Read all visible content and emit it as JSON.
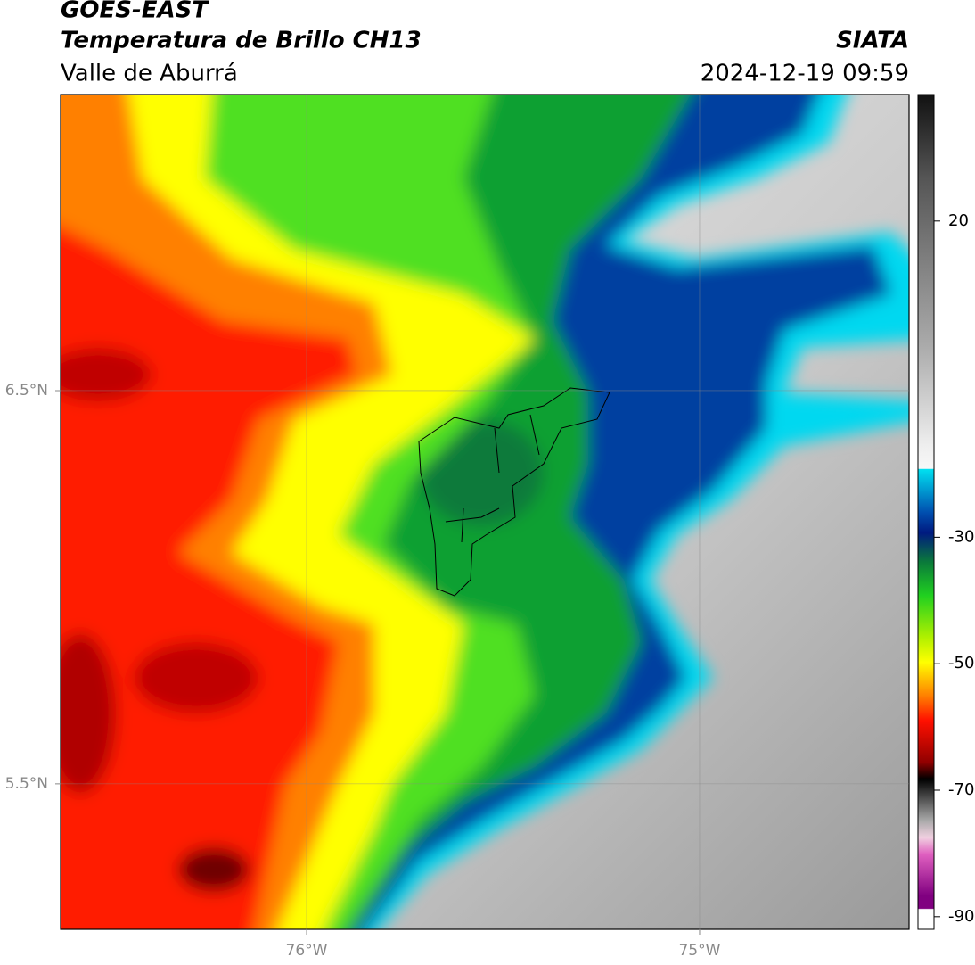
{
  "header": {
    "title": "GOES-EAST",
    "subtitle": "Temperatura de Brillo CH13",
    "region": "Valle de Aburrá",
    "source": "SIATA",
    "datetime": "2024-12-19 09:59"
  },
  "map": {
    "xlim": [
      -76.626,
      -74.467
    ],
    "ylim": [
      5.13,
      7.253
    ],
    "xticks": [
      {
        "value": -76,
        "label": "76°W"
      },
      {
        "value": -75,
        "label": "75°W"
      }
    ],
    "yticks": [
      {
        "value": 6.5,
        "label": "6.5°N"
      },
      {
        "value": 5.5,
        "label": "5.5°N"
      }
    ]
  },
  "colorbar": {
    "lim": [
      -92,
      40
    ],
    "ticks": [
      20,
      -30,
      -50,
      -70,
      -90
    ]
  }
}
